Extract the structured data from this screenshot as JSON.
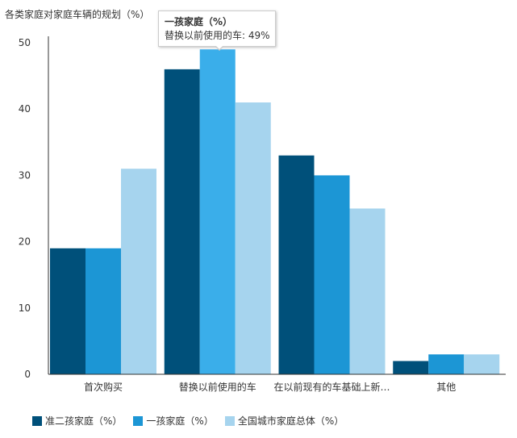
{
  "chart_data": {
    "type": "bar",
    "title": "各类家庭对家庭车辆的规划（%）",
    "categories": [
      "首次购买",
      "替换以前使用的车",
      "在以前现有的车基础上新…",
      "其他"
    ],
    "series": [
      {
        "name": "准二孩家庭（%）",
        "values": [
          19,
          46,
          33,
          2
        ]
      },
      {
        "name": "一孩家庭（%）",
        "values": [
          19,
          49,
          30,
          3
        ]
      },
      {
        "name": "全国城市家庭总体（%）",
        "values": [
          31,
          41,
          25,
          3
        ]
      }
    ],
    "ylim": [
      0,
      50
    ],
    "yticks": [
      0,
      10,
      20,
      30,
      40,
      50
    ],
    "legend_position": "bottom-left",
    "grid": false
  },
  "colors": {
    "series": [
      "#00507a",
      "#1c96d5",
      "#a6d4ee"
    ],
    "highlight": "#3aaeea"
  },
  "tooltip": {
    "title": "一孩家庭（%）",
    "text": "替换以前使用的车: 49%"
  }
}
